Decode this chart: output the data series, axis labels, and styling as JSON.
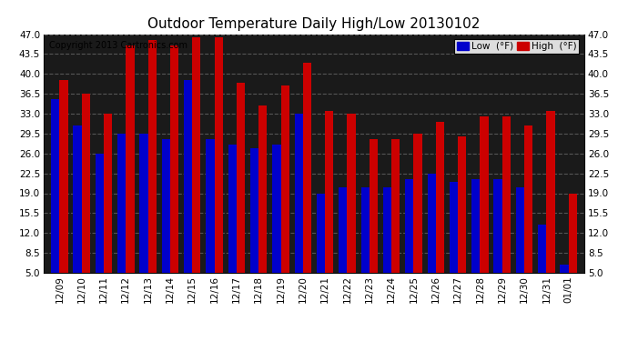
{
  "title": "Outdoor Temperature Daily High/Low 20130102",
  "copyright": "Copyright 2013 Cartronics.com",
  "legend_low": "Low  (°F)",
  "legend_high": "High  (°F)",
  "dates": [
    "12/09",
    "12/10",
    "12/11",
    "12/12",
    "12/13",
    "12/14",
    "12/15",
    "12/16",
    "12/17",
    "12/18",
    "12/19",
    "12/20",
    "12/21",
    "12/22",
    "12/23",
    "12/24",
    "12/25",
    "12/26",
    "12/27",
    "12/28",
    "12/29",
    "12/30",
    "12/31",
    "01/01"
  ],
  "low": [
    35.5,
    31.0,
    26.0,
    29.5,
    29.5,
    28.5,
    39.0,
    28.5,
    27.5,
    27.0,
    27.5,
    33.0,
    19.0,
    20.0,
    20.0,
    20.0,
    21.5,
    22.5,
    21.0,
    21.5,
    21.5,
    20.0,
    13.5,
    6.5
  ],
  "high": [
    39.0,
    36.5,
    33.0,
    45.0,
    46.0,
    45.0,
    46.5,
    46.5,
    38.5,
    34.5,
    38.0,
    42.0,
    33.5,
    33.0,
    28.5,
    28.5,
    29.5,
    31.5,
    29.0,
    32.5,
    32.5,
    31.0,
    33.5,
    19.0
  ],
  "low_color": "#0000cc",
  "high_color": "#cc0000",
  "plot_bg_color": "#1a1a1a",
  "fig_bg_color": "#ffffff",
  "grid_color": "#555555",
  "title_fontsize": 11,
  "copyright_fontsize": 7,
  "ylim_min": 5.0,
  "ylim_max": 47.0,
  "yticks": [
    5.0,
    8.5,
    12.0,
    15.5,
    19.0,
    22.5,
    26.0,
    29.5,
    33.0,
    36.5,
    40.0,
    43.5,
    47.0
  ]
}
